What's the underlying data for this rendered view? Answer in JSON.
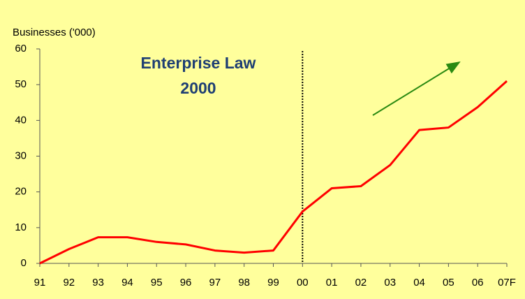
{
  "chart_data": {
    "type": "line",
    "y_axis_label": "Businesses ('000)",
    "annotations": [
      "Enterprise Law",
      "2000"
    ],
    "marker_category": "00",
    "categories": [
      "91",
      "92",
      "93",
      "94",
      "95",
      "96",
      "97",
      "98",
      "99",
      "00",
      "01",
      "02",
      "03",
      "04",
      "05",
      "06",
      "07F"
    ],
    "series": [
      {
        "name": "Businesses",
        "color": "#ff0000",
        "values": [
          0,
          4,
          7.3,
          7.3,
          6,
          5.3,
          3.6,
          3,
          3.6,
          14.5,
          21,
          21.6,
          27.5,
          37.3,
          38,
          43.7,
          51
        ]
      }
    ],
    "ylim": [
      0,
      60
    ],
    "yticks": [
      0,
      10,
      20,
      30,
      40,
      50,
      60
    ]
  }
}
